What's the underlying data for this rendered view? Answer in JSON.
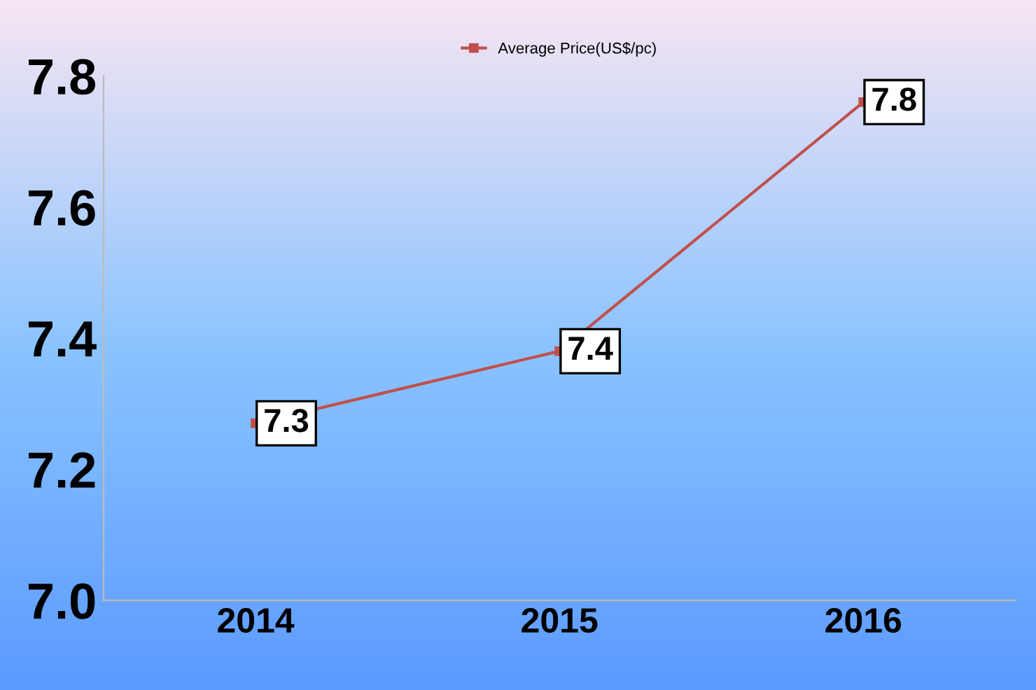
{
  "chart_data": {
    "type": "line",
    "categories": [
      "2014",
      "2015",
      "2016"
    ],
    "series": [
      {
        "name": "Average Price(US$/pc)",
        "color": "#c0504d",
        "values": [
          7.27,
          7.38,
          7.76
        ],
        "value_labels": [
          "7.3",
          "7.4",
          "7.8"
        ]
      }
    ],
    "ylim": [
      7.0,
      7.8
    ],
    "yticks": [
      {
        "value": 7.0,
        "label": "7.0"
      },
      {
        "value": 7.2,
        "label": "7.2"
      },
      {
        "value": 7.4,
        "label": "7.4"
      },
      {
        "value": 7.6,
        "label": "7.6"
      },
      {
        "value": 7.8,
        "label": "7.8"
      }
    ],
    "grid": false,
    "legend": "top",
    "marker": "square",
    "line_style": "solid"
  }
}
